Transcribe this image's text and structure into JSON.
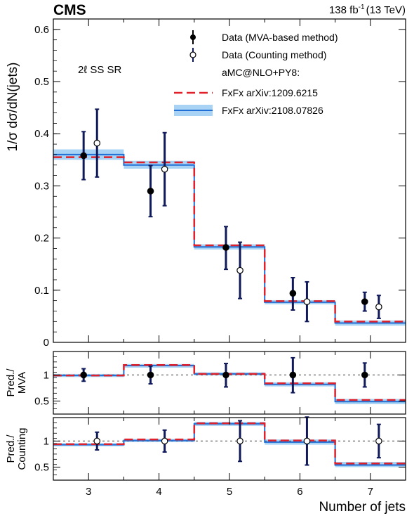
{
  "header": {
    "experiment": "CMS",
    "lumi": "138 fb",
    "lumi_exp": "-1",
    "energy": "(13 TeV)"
  },
  "colors": {
    "data": "#000000",
    "errbar": "#101a5a",
    "red": "#e0202a",
    "blue": "#1f6fd6",
    "band": "#a9d3f5"
  },
  "chart_data": [
    {
      "type": "line",
      "region_label": "2ℓ SS SR",
      "ylabel": "1/σ dσ/dN(jets)",
      "ylim": [
        0,
        0.62
      ],
      "yticks": [
        0,
        0.1,
        0.2,
        0.3,
        0.4,
        0.5,
        0.6
      ],
      "ytick_labels": [
        "0",
        "0.1",
        "0.2",
        "0.3",
        "0.4",
        "0.5",
        "0.6"
      ],
      "xlim": [
        2.5,
        7.5
      ],
      "legend": {
        "position": "top-right",
        "entries": [
          {
            "key": "data_mva",
            "label": "Data (MVA-based method)"
          },
          {
            "key": "data_counting",
            "label": "Data (Counting method)"
          },
          {
            "key": "header",
            "label": "aMC@NLO+PY8:"
          },
          {
            "key": "fxfx1",
            "label": "FxFx arXiv:1209.6215"
          },
          {
            "key": "fxfx2",
            "label": "FxFx arXiv:2108.07826"
          }
        ]
      },
      "bin_edges": [
        2.5,
        3.5,
        4.5,
        5.5,
        6.5,
        7.5
      ],
      "series": [
        {
          "key": "fxfx1",
          "values": [
            0.355,
            0.345,
            0.186,
            0.079,
            0.04
          ]
        },
        {
          "key": "fxfx2",
          "values": [
            0.36,
            0.34,
            0.183,
            0.077,
            0.037
          ],
          "band_low": [
            0.35,
            0.333,
            0.178,
            0.073,
            0.032
          ],
          "band_high": [
            0.37,
            0.348,
            0.188,
            0.081,
            0.042
          ]
        },
        {
          "key": "data_mva",
          "x": [
            2.93,
            3.88,
            4.95,
            5.9,
            6.92
          ],
          "y": [
            0.358,
            0.29,
            0.182,
            0.094,
            0.078
          ],
          "err_low": [
            0.046,
            0.049,
            0.042,
            0.032,
            0.018
          ],
          "err_high": [
            0.046,
            0.049,
            0.04,
            0.03,
            0.018
          ]
        },
        {
          "key": "data_counting",
          "x": [
            3.12,
            4.08,
            5.15,
            6.1,
            7.12
          ],
          "y": [
            0.382,
            0.332,
            0.138,
            0.078,
            0.068
          ],
          "err_low": [
            0.065,
            0.07,
            0.054,
            0.038,
            0.022
          ],
          "err_high": [
            0.065,
            0.07,
            0.054,
            0.038,
            0.022
          ]
        }
      ]
    },
    {
      "type": "line",
      "ylabel": "Pred./ MVA",
      "ylabel_lines": [
        "Pred./",
        "MVA"
      ],
      "ylim": [
        0.25,
        1.45
      ],
      "yticks": [
        0.5,
        1
      ],
      "ytick_labels": [
        "0.5",
        "1"
      ],
      "xlim": [
        2.5,
        7.5
      ],
      "reference_line": 1,
      "bin_edges": [
        2.5,
        3.5,
        4.5,
        5.5,
        6.5,
        7.5
      ],
      "series": [
        {
          "key": "fxfx1",
          "values": [
            0.99,
            1.19,
            1.02,
            0.84,
            0.52
          ]
        },
        {
          "key": "fxfx2",
          "values": [
            0.99,
            1.18,
            1.02,
            0.82,
            0.49
          ],
          "band_low": [
            0.96,
            1.14,
            0.99,
            0.78,
            0.44
          ],
          "band_high": [
            1.02,
            1.21,
            1.05,
            0.86,
            0.54
          ]
        },
        {
          "key": "data_mva",
          "x": [
            2.93,
            3.88,
            4.95,
            5.9,
            6.92
          ],
          "y": [
            1,
            1,
            1,
            1,
            1
          ],
          "err_low": [
            0.12,
            0.17,
            0.23,
            0.34,
            0.23
          ],
          "err_high": [
            0.12,
            0.17,
            0.22,
            0.33,
            0.23
          ]
        }
      ]
    },
    {
      "type": "line",
      "ylabel": "Pred./ Counting",
      "ylabel_lines": [
        "Pred./",
        "Counting"
      ],
      "xlabel": "Number of jets",
      "ylim": [
        0.25,
        1.45
      ],
      "yticks": [
        0.5,
        1
      ],
      "ytick_labels": [
        "0.5",
        "1"
      ],
      "xlim": [
        2.5,
        7.5
      ],
      "xticks": [
        3,
        4,
        5,
        6,
        7
      ],
      "xtick_labels": [
        "3",
        "4",
        "5",
        "6",
        "7"
      ],
      "reference_line": 1,
      "bin_edges": [
        2.5,
        3.5,
        4.5,
        5.5,
        6.5,
        7.5
      ],
      "series": [
        {
          "key": "fxfx1",
          "values": [
            0.94,
            1.03,
            1.34,
            1.01,
            0.57
          ]
        },
        {
          "key": "fxfx2",
          "values": [
            0.93,
            1.01,
            1.33,
            0.98,
            0.54
          ],
          "band_low": [
            0.9,
            0.98,
            1.29,
            0.93,
            0.5
          ],
          "band_high": [
            0.96,
            1.04,
            1.37,
            1.03,
            0.6
          ]
        },
        {
          "key": "data_counting",
          "x": [
            3.12,
            4.08,
            5.15,
            6.1,
            7.12
          ],
          "y": [
            1,
            1,
            1,
            1,
            1
          ],
          "err_low": [
            0.17,
            0.21,
            0.39,
            0.46,
            0.32
          ],
          "err_high": [
            0.17,
            0.21,
            0.39,
            0.46,
            0.32
          ]
        }
      ]
    }
  ]
}
